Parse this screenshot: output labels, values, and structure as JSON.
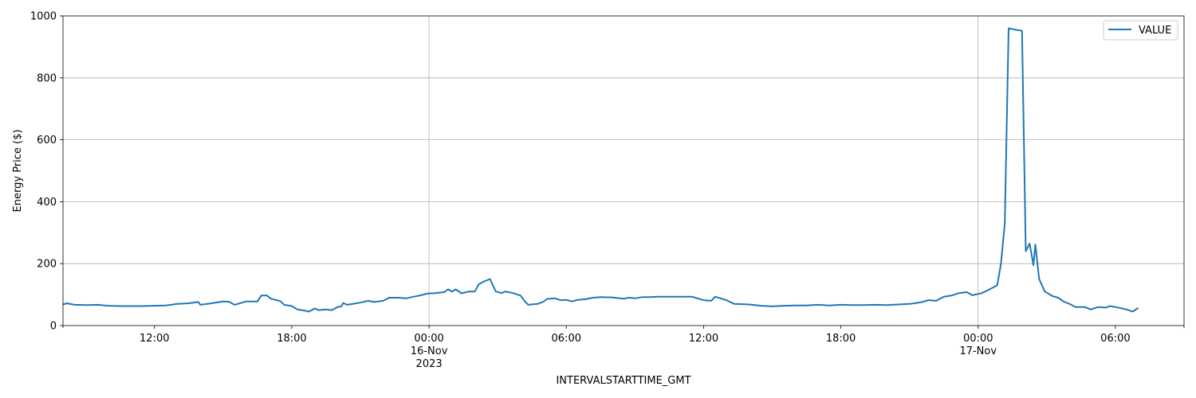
{
  "chart_data": {
    "type": "line",
    "xlabel": "INTERVALSTARTTIME_GMT",
    "ylabel": "Energy Price ($)",
    "xlim": [
      "2023-11-15T08:00",
      "2023-11-17T09:00"
    ],
    "ylim": [
      0,
      1000
    ],
    "yticks": [
      0,
      200,
      400,
      600,
      800,
      1000
    ],
    "xticks": [
      {
        "t": "2023-11-15T12:00",
        "lines": [
          "12:00"
        ]
      },
      {
        "t": "2023-11-15T18:00",
        "lines": [
          "18:00"
        ]
      },
      {
        "t": "2023-11-16T00:00",
        "lines": [
          "00:00",
          "16-Nov",
          "2023"
        ]
      },
      {
        "t": "2023-11-16T06:00",
        "lines": [
          "06:00"
        ]
      },
      {
        "t": "2023-11-16T12:00",
        "lines": [
          "12:00"
        ]
      },
      {
        "t": "2023-11-16T18:00",
        "lines": [
          "18:00"
        ]
      },
      {
        "t": "2023-11-17T00:00",
        "lines": [
          "00:00",
          "17-Nov"
        ]
      },
      {
        "t": "2023-11-17T06:00",
        "lines": [
          "06:00"
        ]
      }
    ],
    "gridlines_x": [
      "2023-11-16T00:00",
      "2023-11-17T00:00"
    ],
    "grid": true,
    "legend_position": "upper right",
    "series": [
      {
        "name": "VALUE",
        "color": "#1f77b4",
        "points": [
          [
            "2023-11-15T08:00",
            68
          ],
          [
            "2023-11-15T08:10",
            72
          ],
          [
            "2023-11-15T08:30",
            67
          ],
          [
            "2023-11-15T09:00",
            66
          ],
          [
            "2023-11-15T09:30",
            67
          ],
          [
            "2023-11-15T10:00",
            64
          ],
          [
            "2023-11-15T10:30",
            63
          ],
          [
            "2023-11-15T11:00",
            63
          ],
          [
            "2023-11-15T11:30",
            63
          ],
          [
            "2023-11-15T12:00",
            64
          ],
          [
            "2023-11-15T12:30",
            65
          ],
          [
            "2023-11-15T13:00",
            70
          ],
          [
            "2023-11-15T13:30",
            72
          ],
          [
            "2023-11-15T13:55",
            76
          ],
          [
            "2023-11-15T14:00",
            67
          ],
          [
            "2023-11-15T14:30",
            72
          ],
          [
            "2023-11-15T15:00",
            78
          ],
          [
            "2023-11-15T15:15",
            77
          ],
          [
            "2023-11-15T15:30",
            67
          ],
          [
            "2023-11-15T16:00",
            78
          ],
          [
            "2023-11-15T16:30",
            78
          ],
          [
            "2023-11-15T16:40",
            97
          ],
          [
            "2023-11-15T16:55",
            97
          ],
          [
            "2023-11-15T17:05",
            87
          ],
          [
            "2023-11-15T17:30",
            79
          ],
          [
            "2023-11-15T17:40",
            67
          ],
          [
            "2023-11-15T18:00",
            63
          ],
          [
            "2023-11-15T18:15",
            52
          ],
          [
            "2023-11-15T18:35",
            48
          ],
          [
            "2023-11-15T18:45",
            45
          ],
          [
            "2023-11-15T19:00",
            55
          ],
          [
            "2023-11-15T19:10",
            50
          ],
          [
            "2023-11-15T19:30",
            52
          ],
          [
            "2023-11-15T19:45",
            50
          ],
          [
            "2023-11-15T20:00",
            60
          ],
          [
            "2023-11-15T20:10",
            62
          ],
          [
            "2023-11-15T20:15",
            73
          ],
          [
            "2023-11-15T20:25",
            67
          ],
          [
            "2023-11-15T20:40",
            70
          ],
          [
            "2023-11-15T21:00",
            74
          ],
          [
            "2023-11-15T21:20",
            80
          ],
          [
            "2023-11-15T21:35",
            76
          ],
          [
            "2023-11-15T22:00",
            80
          ],
          [
            "2023-11-15T22:15",
            90
          ],
          [
            "2023-11-15T22:40",
            90
          ],
          [
            "2023-11-15T23:00",
            88
          ],
          [
            "2023-11-15T23:15",
            92
          ],
          [
            "2023-11-15T23:35",
            97
          ],
          [
            "2023-11-15T23:55",
            103
          ],
          [
            "2023-11-16T00:15",
            105
          ],
          [
            "2023-11-16T00:40",
            108
          ],
          [
            "2023-11-16T00:50",
            117
          ],
          [
            "2023-11-16T01:00",
            110
          ],
          [
            "2023-11-16T01:10",
            117
          ],
          [
            "2023-11-16T01:25",
            104
          ],
          [
            "2023-11-16T01:45",
            110
          ],
          [
            "2023-11-16T02:00",
            110
          ],
          [
            "2023-11-16T02:10",
            133
          ],
          [
            "2023-11-16T02:25",
            143
          ],
          [
            "2023-11-16T02:40",
            150
          ],
          [
            "2023-11-16T02:55",
            110
          ],
          [
            "2023-11-16T03:10",
            105
          ],
          [
            "2023-11-16T03:20",
            110
          ],
          [
            "2023-11-16T03:40",
            105
          ],
          [
            "2023-11-16T04:00",
            97
          ],
          [
            "2023-11-16T04:10",
            80
          ],
          [
            "2023-11-16T04:20",
            67
          ],
          [
            "2023-11-16T04:45",
            70
          ],
          [
            "2023-11-16T05:00",
            77
          ],
          [
            "2023-11-16T05:10",
            86
          ],
          [
            "2023-11-16T05:30",
            88
          ],
          [
            "2023-11-16T05:45",
            82
          ],
          [
            "2023-11-16T06:00",
            83
          ],
          [
            "2023-11-16T06:15",
            78
          ],
          [
            "2023-11-16T06:30",
            83
          ],
          [
            "2023-11-16T06:50",
            85
          ],
          [
            "2023-11-16T07:10",
            90
          ],
          [
            "2023-11-16T07:30",
            92
          ],
          [
            "2023-11-16T08:00",
            91
          ],
          [
            "2023-11-16T08:30",
            87
          ],
          [
            "2023-11-16T08:45",
            90
          ],
          [
            "2023-11-16T09:00",
            88
          ],
          [
            "2023-11-16T09:20",
            92
          ],
          [
            "2023-11-16T09:40",
            92
          ],
          [
            "2023-11-16T10:00",
            93
          ],
          [
            "2023-11-16T10:30",
            93
          ],
          [
            "2023-11-16T11:00",
            93
          ],
          [
            "2023-11-16T11:30",
            93
          ],
          [
            "2023-11-16T12:00",
            82
          ],
          [
            "2023-11-16T12:20",
            80
          ],
          [
            "2023-11-16T12:30",
            93
          ],
          [
            "2023-11-16T13:00",
            82
          ],
          [
            "2023-11-16T13:20",
            70
          ],
          [
            "2023-11-16T14:00",
            68
          ],
          [
            "2023-11-16T14:30",
            64
          ],
          [
            "2023-11-16T15:00",
            62
          ],
          [
            "2023-11-16T15:30",
            64
          ],
          [
            "2023-11-16T16:00",
            65
          ],
          [
            "2023-11-16T16:30",
            65
          ],
          [
            "2023-11-16T17:00",
            67
          ],
          [
            "2023-11-16T17:30",
            65
          ],
          [
            "2023-11-16T18:00",
            67
          ],
          [
            "2023-11-16T18:30",
            66
          ],
          [
            "2023-11-16T19:00",
            66
          ],
          [
            "2023-11-16T19:30",
            67
          ],
          [
            "2023-11-16T20:00",
            66
          ],
          [
            "2023-11-16T20:30",
            68
          ],
          [
            "2023-11-16T21:00",
            70
          ],
          [
            "2023-11-16T21:30",
            75
          ],
          [
            "2023-11-16T21:50",
            82
          ],
          [
            "2023-11-16T22:10",
            80
          ],
          [
            "2023-11-16T22:30",
            93
          ],
          [
            "2023-11-16T22:50",
            97
          ],
          [
            "2023-11-16T23:10",
            105
          ],
          [
            "2023-11-16T23:30",
            108
          ],
          [
            "2023-11-16T23:45",
            98
          ],
          [
            "2023-11-17T00:10",
            105
          ],
          [
            "2023-11-17T00:30",
            117
          ],
          [
            "2023-11-17T00:50",
            130
          ],
          [
            "2023-11-17T01:00",
            200
          ],
          [
            "2023-11-17T01:10",
            330
          ],
          [
            "2023-11-17T01:20",
            960
          ],
          [
            "2023-11-17T01:40",
            955
          ],
          [
            "2023-11-17T01:55",
            952
          ],
          [
            "2023-11-17T02:05",
            240
          ],
          [
            "2023-11-17T02:15",
            265
          ],
          [
            "2023-11-17T02:25",
            195
          ],
          [
            "2023-11-17T02:30",
            262
          ],
          [
            "2023-11-17T02:40",
            150
          ],
          [
            "2023-11-17T02:55",
            110
          ],
          [
            "2023-11-17T03:15",
            95
          ],
          [
            "2023-11-17T03:30",
            90
          ],
          [
            "2023-11-17T03:45",
            77
          ],
          [
            "2023-11-17T04:00",
            70
          ],
          [
            "2023-11-17T04:15",
            60
          ],
          [
            "2023-11-17T04:40",
            60
          ],
          [
            "2023-11-17T04:55",
            52
          ],
          [
            "2023-11-17T05:15",
            60
          ],
          [
            "2023-11-17T05:35",
            58
          ],
          [
            "2023-11-17T05:45",
            63
          ],
          [
            "2023-11-17T06:00",
            60
          ],
          [
            "2023-11-17T06:30",
            52
          ],
          [
            "2023-11-17T06:45",
            45
          ],
          [
            "2023-11-17T07:00",
            57
          ]
        ]
      }
    ]
  }
}
